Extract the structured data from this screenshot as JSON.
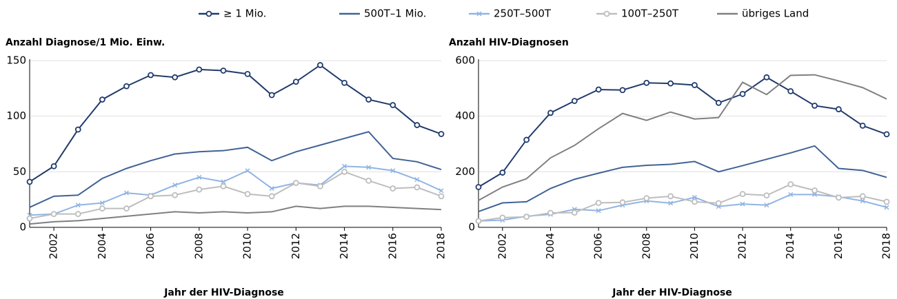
{
  "chart_data": [
    {
      "type": "line",
      "title": "Anzahl Diagnose/1 Mio. Einw.",
      "xlabel": "Jahr der HIV-Diagnose",
      "x": [
        2001,
        2002,
        2003,
        2004,
        2005,
        2006,
        2007,
        2008,
        2009,
        2010,
        2011,
        2012,
        2013,
        2014,
        2015,
        2016,
        2017,
        2018
      ],
      "xlim": [
        2001,
        2018
      ],
      "xticks": [
        2002,
        2004,
        2006,
        2008,
        2010,
        2012,
        2014,
        2016,
        2018
      ],
      "ylim": [
        0,
        150
      ],
      "yticks": [
        0,
        50,
        100,
        150
      ],
      "grid": true,
      "series": [
        {
          "name": "≥ 1 Mio.",
          "color": "#1f3a6b",
          "marker": "circle",
          "values": [
            41,
            55,
            88,
            115,
            127,
            137,
            135,
            142,
            141,
            138,
            119,
            131,
            146,
            130,
            115,
            110,
            92,
            84
          ]
        },
        {
          "name": "500T–1 Mio.",
          "color": "#3f6294",
          "marker": null,
          "values": [
            18,
            28,
            29,
            44,
            53,
            60,
            66,
            68,
            69,
            72,
            60,
            68,
            74,
            80,
            86,
            62,
            59,
            52
          ]
        },
        {
          "name": "250T–500T",
          "color": "#8fb4e3",
          "marker": "x",
          "values": [
            11,
            12,
            20,
            22,
            31,
            29,
            38,
            45,
            41,
            51,
            35,
            40,
            38,
            55,
            54,
            51,
            43,
            33
          ]
        },
        {
          "name": "100T–250T",
          "color": "#bdbdbd",
          "marker": "circle",
          "values": [
            8,
            12,
            12,
            17,
            17,
            28,
            29,
            34,
            37,
            30,
            28,
            40,
            37,
            50,
            42,
            35,
            36,
            28
          ]
        },
        {
          "name": "übriges Land",
          "color": "#7f7f7f",
          "marker": null,
          "values": [
            3,
            5,
            6,
            8,
            10,
            12,
            14,
            13,
            14,
            13,
            14,
            19,
            17,
            19,
            19,
            18,
            17,
            16
          ]
        }
      ]
    },
    {
      "type": "line",
      "title": "Anzahl HIV-Diagnosen",
      "xlabel": "Jahr der HIV-Diagnose",
      "x": [
        2001,
        2002,
        2003,
        2004,
        2005,
        2006,
        2007,
        2008,
        2009,
        2010,
        2011,
        2012,
        2013,
        2014,
        2015,
        2016,
        2017,
        2018
      ],
      "xlim": [
        2001,
        2018
      ],
      "xticks": [
        2002,
        2004,
        2006,
        2008,
        2010,
        2012,
        2014,
        2016,
        2018
      ],
      "ylim": [
        0,
        600
      ],
      "yticks": [
        0,
        200,
        400,
        600
      ],
      "grid": true,
      "series": [
        {
          "name": "≥ 1 Mio.",
          "color": "#1f3a6b",
          "marker": "circle",
          "values": [
            145,
            197,
            315,
            412,
            455,
            496,
            494,
            520,
            518,
            512,
            448,
            480,
            540,
            490,
            438,
            425,
            366,
            335
          ]
        },
        {
          "name": "500T–1 Mio.",
          "color": "#3f6294",
          "marker": null,
          "values": [
            57,
            88,
            92,
            140,
            173,
            195,
            216,
            223,
            227,
            237,
            200,
            222,
            245,
            268,
            293,
            212,
            205,
            180
          ]
        },
        {
          "name": "250T–500T",
          "color": "#8fb4e3",
          "marker": "x",
          "values": [
            23,
            26,
            40,
            47,
            65,
            60,
            80,
            95,
            87,
            108,
            75,
            84,
            80,
            118,
            118,
            110,
            95,
            72
          ]
        },
        {
          "name": "100T–250T",
          "color": "#bdbdbd",
          "marker": "circle",
          "values": [
            23,
            35,
            38,
            52,
            53,
            88,
            90,
            105,
            112,
            92,
            87,
            120,
            115,
            155,
            133,
            107,
            112,
            92
          ]
        },
        {
          "name": "übriges Land",
          "color": "#7f7f7f",
          "marker": null,
          "values": [
            97,
            145,
            175,
            250,
            295,
            355,
            410,
            385,
            415,
            390,
            395,
            522,
            478,
            547,
            549,
            527,
            503,
            462
          ]
        }
      ]
    }
  ]
}
